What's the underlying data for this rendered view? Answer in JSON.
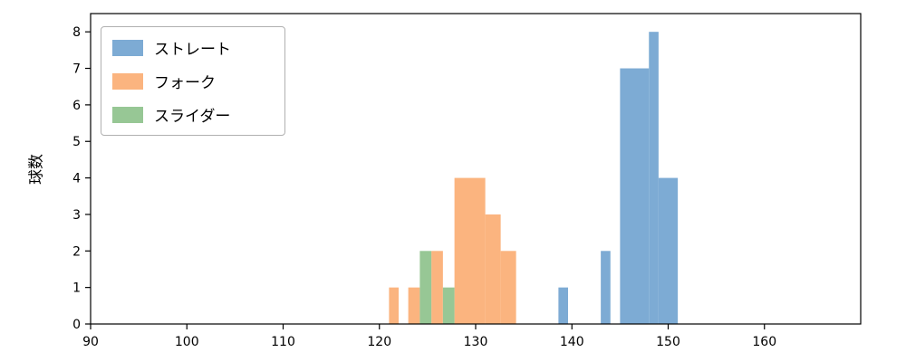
{
  "chart_data": {
    "type": "bar",
    "title": "",
    "xlabel": "",
    "ylabel": "球数",
    "xlim": [
      90,
      170
    ],
    "ylim": [
      0,
      8.5
    ],
    "grid": false,
    "x_ticks": [
      90,
      100,
      110,
      120,
      130,
      140,
      150,
      160
    ],
    "y_ticks": [
      0,
      1,
      2,
      3,
      4,
      5,
      6,
      7,
      8
    ],
    "legend_position": "upper left",
    "legend": [
      {
        "label": "ストレート",
        "color": "#7dabd4"
      },
      {
        "label": "フォーク",
        "color": "#fbb47f"
      },
      {
        "label": "スライダー",
        "color": "#97c795"
      }
    ],
    "series": [
      {
        "name": "フォーク",
        "color": "#fbb47f",
        "bars": [
          {
            "x0": 121.0,
            "x1": 122.0,
            "h": 1
          },
          {
            "x0": 123.0,
            "x1": 124.2,
            "h": 1
          },
          {
            "x0": 125.4,
            "x1": 126.6,
            "h": 2
          },
          {
            "x0": 127.8,
            "x1": 131.0,
            "h": 4
          },
          {
            "x0": 131.0,
            "x1": 132.6,
            "h": 3
          },
          {
            "x0": 132.6,
            "x1": 134.2,
            "h": 2
          }
        ]
      },
      {
        "name": "スライダー",
        "color": "#97c795",
        "bars": [
          {
            "x0": 124.2,
            "x1": 125.4,
            "h": 2
          },
          {
            "x0": 126.6,
            "x1": 127.8,
            "h": 1
          }
        ]
      },
      {
        "name": "ストレート",
        "color": "#7dabd4",
        "bars": [
          {
            "x0": 138.6,
            "x1": 139.6,
            "h": 1
          },
          {
            "x0": 143.0,
            "x1": 144.0,
            "h": 2
          },
          {
            "x0": 145.0,
            "x1": 148.0,
            "h": 7
          },
          {
            "x0": 148.0,
            "x1": 149.0,
            "h": 8
          },
          {
            "x0": 149.0,
            "x1": 151.0,
            "h": 4
          }
        ]
      }
    ]
  }
}
